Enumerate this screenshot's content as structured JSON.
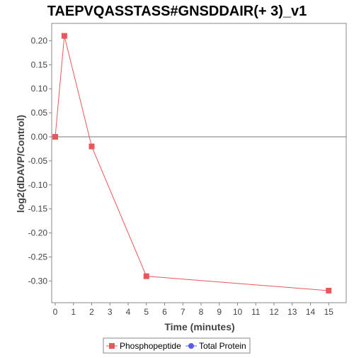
{
  "chart_data": {
    "type": "line",
    "title": "TAEPVQASSTASS#GNSDDAIR(+ 3)_v1",
    "xlabel": "Time (minutes)",
    "ylabel": "log2(dDAVP/Control)",
    "xlim": [
      0,
      15.5
    ],
    "ylim": [
      -0.335,
      0.235
    ],
    "xticks": [
      0,
      1,
      2,
      3,
      4,
      5,
      6,
      7,
      8,
      9,
      10,
      11,
      12,
      13,
      14,
      15
    ],
    "yticks": [
      0.2,
      0.15,
      0.1,
      0.05,
      0.0,
      -0.05,
      -0.1,
      -0.15,
      -0.2,
      -0.25,
      -0.3
    ],
    "ytick_labels": [
      "0.20",
      "0.15",
      "0.10",
      "0.05",
      "0.00",
      "-0.05",
      "-0.10",
      "-0.15",
      "-0.20",
      "-0.25",
      "-0.30"
    ],
    "zero_line": true,
    "grid": false,
    "legend_position": "bottom",
    "series": [
      {
        "name": "Phosphopeptide",
        "color": "#e8575a",
        "marker": "square",
        "x": [
          0,
          0.5,
          2,
          5,
          15
        ],
        "y": [
          0.0,
          0.21,
          -0.02,
          -0.29,
          -0.32
        ]
      },
      {
        "name": "Total Protein",
        "color": "#5a5af0",
        "marker": "circle",
        "x": [],
        "y": []
      }
    ]
  }
}
